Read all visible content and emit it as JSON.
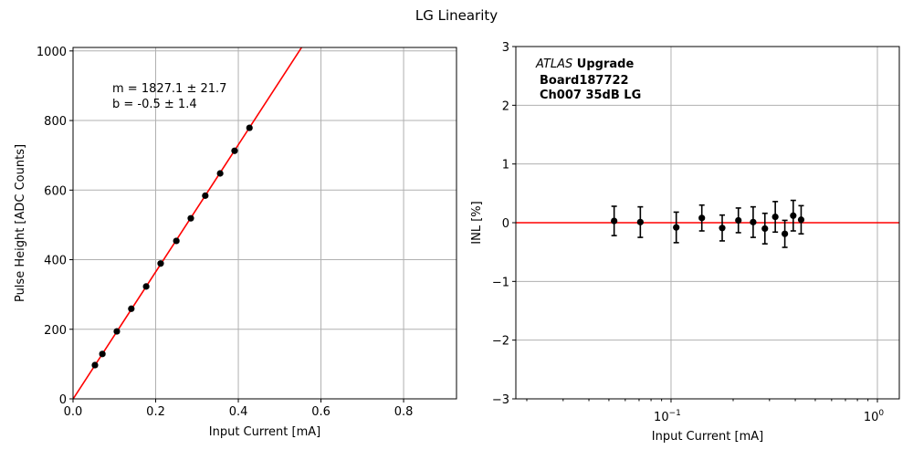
{
  "chart_data": [
    {
      "type": "scatter",
      "title": "LG Linearity",
      "xlabel": "Input Current [mA]",
      "ylabel": "Pulse Height [ADC Counts]",
      "xlim": [
        0,
        0.928
      ],
      "ylim": [
        0,
        1010
      ],
      "xticks": [
        0.0,
        0.2,
        0.4,
        0.6,
        0.8
      ],
      "xtick_labels": [
        "0.0",
        "0.2",
        "0.4",
        "0.6",
        "0.8"
      ],
      "yticks": [
        0,
        200,
        400,
        600,
        800,
        1000
      ],
      "ytick_labels": [
        "0",
        "200",
        "400",
        "600",
        "800",
        "1000"
      ],
      "grid": true,
      "x": [
        0.053,
        0.071,
        0.106,
        0.141,
        0.177,
        0.212,
        0.25,
        0.285,
        0.32,
        0.356,
        0.391,
        0.427
      ],
      "y": [
        97,
        129,
        194,
        259,
        323,
        389,
        454,
        519,
        584,
        648,
        713,
        779
      ],
      "fit": {
        "slope": 1827.1,
        "intercept": -0.5,
        "color": "#ff0000"
      },
      "annotations": [
        "m = 1827.1 ± 21.7",
        " b = -0.5 ± 1.4"
      ],
      "marker_color": "#000000"
    },
    {
      "type": "scatter",
      "xscale": "log",
      "xlabel": "Input Current [mA]",
      "ylabel": "INL [%]",
      "xlim": [
        0.0177,
        1.277
      ],
      "ylim": [
        -3,
        3
      ],
      "xticks": [
        0.1,
        1
      ],
      "xtick_labels": [
        [
          "10",
          "−1"
        ],
        [
          "10",
          "0"
        ]
      ],
      "yticks": [
        -3,
        -2,
        -1,
        0,
        1,
        2,
        3
      ],
      "ytick_labels": [
        "−3",
        "−2",
        "−1",
        "0",
        "1",
        "2",
        "3"
      ],
      "grid": true,
      "x": [
        0.053,
        0.071,
        0.106,
        0.141,
        0.177,
        0.212,
        0.25,
        0.285,
        0.32,
        0.356,
        0.391,
        0.427
      ],
      "y": [
        0.03,
        0.01,
        -0.08,
        0.08,
        -0.09,
        0.04,
        0.01,
        -0.1,
        0.1,
        -0.19,
        0.12,
        0.05
      ],
      "yerr": [
        0.25,
        0.26,
        0.26,
        0.22,
        0.22,
        0.21,
        0.26,
        0.26,
        0.26,
        0.23,
        0.26,
        0.24
      ],
      "reference_line": {
        "y": 0,
        "color": "#ff0000"
      },
      "annotation": {
        "italic": "ATLAS",
        "bold": " Upgrade",
        "line2": "Board187722",
        "line3": "Ch007 35dB LG"
      }
    }
  ]
}
